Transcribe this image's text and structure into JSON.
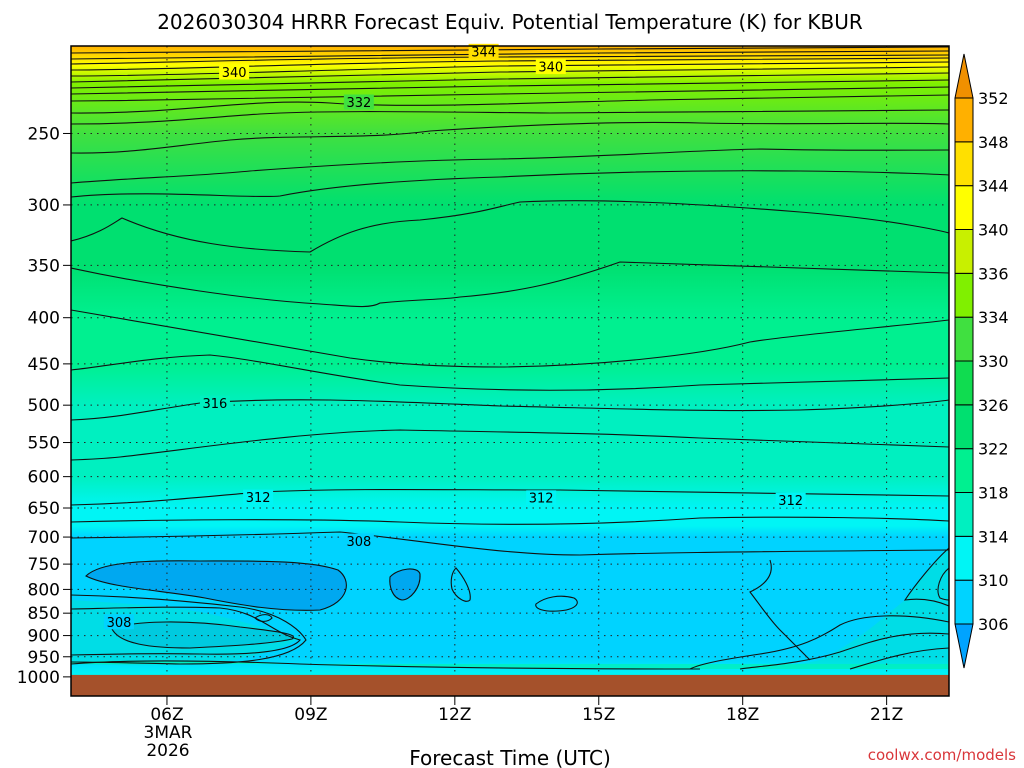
{
  "chart_data": {
    "type": "heatmap",
    "title": "2026030304 HRRR Forecast Equiv. Potential Temperature (K) for KBUR",
    "xlabel": "Forecast Time (UTC)",
    "ylabel": "",
    "credit": "coolwx.com/models",
    "x_range_hours": [
      4,
      22.3
    ],
    "x_ticks": [
      {
        "label": "06Z",
        "hour": 6
      },
      {
        "label": "09Z",
        "hour": 9
      },
      {
        "label": "12Z",
        "hour": 12
      },
      {
        "label": "15Z",
        "hour": 15
      },
      {
        "label": "18Z",
        "hour": 18
      },
      {
        "label": "21Z",
        "hour": 21
      }
    ],
    "date_label": [
      "3MAR",
      "2026"
    ],
    "y_range_hpa": [
      1050,
      200
    ],
    "y_ticks": [
      "250",
      "300",
      "350",
      "400",
      "450",
      "500",
      "550",
      "600",
      "650",
      "700",
      "750",
      "800",
      "850",
      "900",
      "950",
      "1000"
    ],
    "terrain_top_hpa": 995,
    "colorbar": {
      "levels": [
        306,
        310,
        314,
        318,
        322,
        326,
        330,
        334,
        336,
        340,
        344,
        348,
        352
      ],
      "labels": [
        "306",
        "310",
        "314",
        "318",
        "322",
        "326",
        "330",
        "334",
        "336",
        "340",
        "344",
        "348",
        "352"
      ],
      "colors": [
        "#00a3ff",
        "#00d3ff",
        "#00f5f5",
        "#00f0c0",
        "#00f090",
        "#00e070",
        "#10dc50",
        "#40e040",
        "#80f000",
        "#c8f000",
        "#ffff00",
        "#ffe000",
        "#ffb000",
        "#f09000"
      ]
    },
    "profile": [
      {
        "hpa": 995,
        "k": 312
      },
      {
        "hpa": 950,
        "k": 309
      },
      {
        "hpa": 900,
        "k": 307
      },
      {
        "hpa": 850,
        "k": 307
      },
      {
        "hpa": 800,
        "k": 307
      },
      {
        "hpa": 750,
        "k": 307
      },
      {
        "hpa": 700,
        "k": 309
      },
      {
        "hpa": 680,
        "k": 311
      },
      {
        "hpa": 650,
        "k": 312
      },
      {
        "hpa": 600,
        "k": 314
      },
      {
        "hpa": 550,
        "k": 315
      },
      {
        "hpa": 500,
        "k": 316
      },
      {
        "hpa": 450,
        "k": 318
      },
      {
        "hpa": 400,
        "k": 320
      },
      {
        "hpa": 350,
        "k": 322
      },
      {
        "hpa": 300,
        "k": 324
      },
      {
        "hpa": 250,
        "k": 330
      },
      {
        "hpa": 220,
        "k": 334
      },
      {
        "hpa": 210,
        "k": 340
      },
      {
        "hpa": 200,
        "k": 348
      }
    ],
    "contour_labels": [
      {
        "text": "344",
        "hour": 12.6,
        "hpa": 203
      },
      {
        "text": "340",
        "hour": 7.4,
        "hpa": 214
      },
      {
        "text": "340",
        "hour": 14.0,
        "hpa": 211
      },
      {
        "text": "332",
        "hour": 10.0,
        "hpa": 231
      },
      {
        "text": "316",
        "hour": 7.0,
        "hpa": 498
      },
      {
        "text": "312",
        "hour": 7.9,
        "hpa": 633
      },
      {
        "text": "312",
        "hour": 13.8,
        "hpa": 634
      },
      {
        "text": "312",
        "hour": 19.0,
        "hpa": 638
      },
      {
        "text": "308",
        "hour": 10.0,
        "hpa": 708
      },
      {
        "text": "308",
        "hour": 5.0,
        "hpa": 870
      }
    ]
  }
}
